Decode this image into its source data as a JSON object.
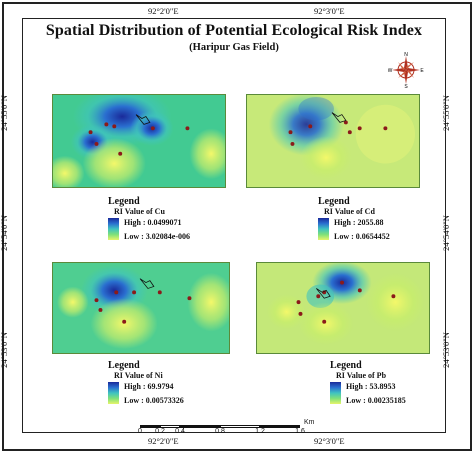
{
  "title": "Spatial Distribution of Potential Ecological Risk Index",
  "subtitle": "(Haripur Gas Field)",
  "coords": {
    "top_left": "92°2'0\"E",
    "top_right": "92°3'0\"E",
    "bottom_left": "92°2'0\"E",
    "bottom_right": "92°3'0\"E",
    "left_top": "24°55'0\"N",
    "left_mid": "24°54'0\"N",
    "left_bottom": "24°53'0\"N",
    "right_top": "24°55'0\"N",
    "right_mid": "24°54'0\"N",
    "right_bottom": "24°53'0\"N"
  },
  "compass": {
    "n": "N",
    "s": "S",
    "e": "E",
    "w": "W"
  },
  "panels": [
    {
      "id": "cu",
      "legend_title": "Legend",
      "legend_sub": "RI Value of Cu",
      "high": "High : 0.0499071",
      "low": "Low : 3.02084e-006"
    },
    {
      "id": "cd",
      "legend_title": "Legend",
      "legend_sub": "RI Value of Cd",
      "high": "High : 2055.88",
      "low": "Low : 0.0654452"
    },
    {
      "id": "ni",
      "legend_title": "Legend",
      "legend_sub": "RI Value of Ni",
      "high": "High : 69.9794",
      "low": "Low : 0.00573326"
    },
    {
      "id": "pb",
      "legend_title": "Legend",
      "legend_sub": "RI Value of Pb",
      "high": "High : 53.8953",
      "low": "Low : 0.00235185"
    }
  ],
  "scale": {
    "ticks": [
      "0",
      "0.2",
      "0.4",
      "0.8",
      "1.2",
      "1.6"
    ],
    "unit": "Km"
  },
  "colors": {
    "high": "#1a2a9a",
    "mid": "#3fc3c0",
    "low": "#e8f56a",
    "sample_point": "#8b1a1a"
  }
}
